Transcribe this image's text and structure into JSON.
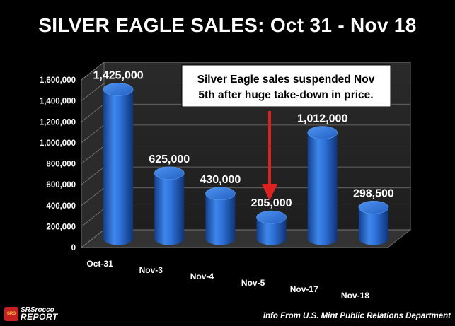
{
  "chart_data": {
    "type": "bar",
    "title": "SILVER EAGLE SALES:  Oct 31 - Nov 18",
    "categories": [
      "Oct-31",
      "Nov-3",
      "Nov-4",
      "Nov-5",
      "Nov-17",
      "Nov-18"
    ],
    "values": [
      1425000,
      625000,
      430000,
      205000,
      1012000,
      298500
    ],
    "data_labels": [
      "1,425,000",
      "625,000",
      "430,000",
      "205,000",
      "1,012,000",
      "298,500"
    ],
    "y_ticks": [
      "0",
      "200,000",
      "400,000",
      "600,000",
      "800,000",
      "1,000,000",
      "1,200,000",
      "1,400,000",
      "1,600,000"
    ],
    "ylim": [
      0,
      1600000
    ],
    "grid": true,
    "bar_shape": "cylinder",
    "bar_color": "#2a6fd6",
    "annotation": {
      "text_line1": "Silver Eagle sales suspended Nov",
      "text_line2": "5th after huge take-down in price.",
      "arrow_color": "#e0201c"
    }
  },
  "logo": {
    "badge": "SRS",
    "line1": "SRSrocco",
    "line2": "REPORT"
  },
  "source": "info From U.S. Mint Public Relations Department"
}
